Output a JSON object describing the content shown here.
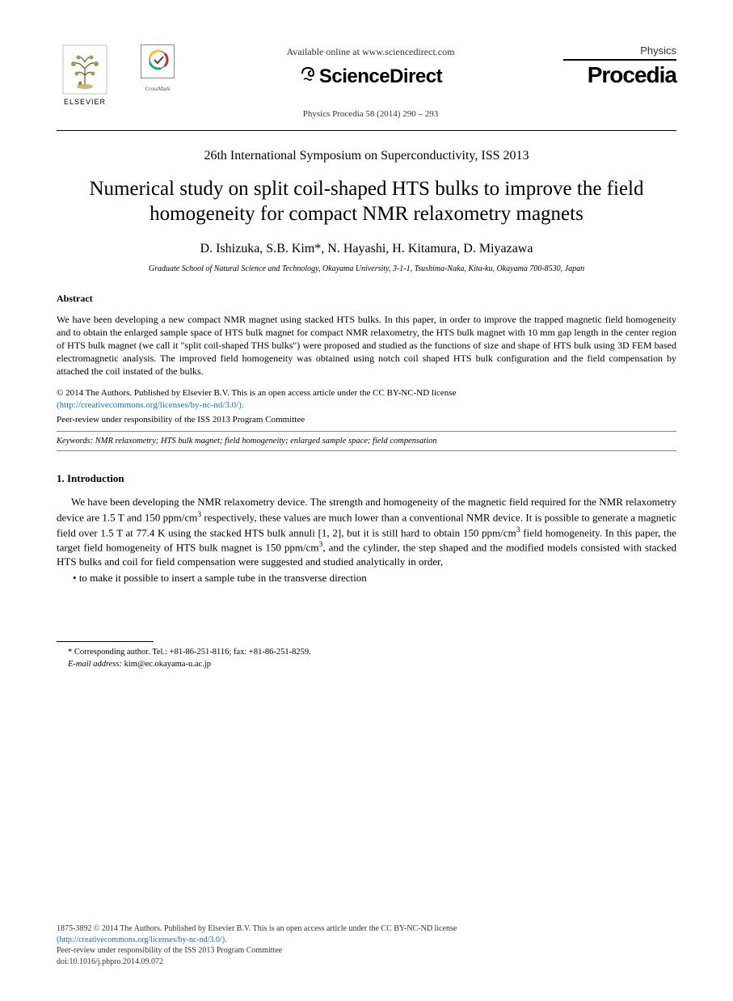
{
  "header": {
    "elsevier_label": "ELSEVIER",
    "crossmark_label": "CrossMark",
    "available_online": "Available online at www.sciencedirect.com",
    "sciencedirect": "ScienceDirect",
    "citation": "Physics Procedia 58 (2014) 290 – 293",
    "procedia_physics": "Physics",
    "procedia_word": "Procedia"
  },
  "symposium": "26th International Symposium on Superconductivity, ISS 2013",
  "title": "Numerical study on split coil-shaped HTS bulks to improve the field homogeneity for compact NMR relaxometry magnets",
  "authors": "D. Ishizuka, S.B. Kim*, N. Hayashi, H. Kitamura, D. Miyazawa",
  "affiliation": "Graduate School of Natural Science and Technology, Okayama University, 3-1-1, Tsushima-Naka, Kita-ku, Okayama 700-8530, Japan",
  "abstract": {
    "heading": "Abstract",
    "body": "We have been developing a new compact NMR magnet using stacked HTS bulks. In this paper, in order to improve the trapped magnetic field homogeneity and to obtain the enlarged sample space of HTS bulk magnet for compact NMR relaxometry, the HTS bulk magnet with 10 mm gap length in the center region of HTS bulk magnet (we call it \"split coil-shaped THS bulks\") were proposed and studied as the functions of size and shape of HTS bulk using 3D FEM based electromagnetic analysis. The improved field homogeneity was obtained using notch coil shaped HTS bulk configuration and the field compensation by attached the coil instated of the bulks."
  },
  "license": {
    "line1": "© 2014 The Authors. Published by Elsevier B.V. This is an open access article under the CC BY-NC-ND license",
    "link_text": "(http://creativecommons.org/licenses/by-nc-nd/3.0/).",
    "link_url": "http://creativecommons.org/licenses/by-nc-nd/3.0/",
    "peer_review": "Peer-review under responsibility of the ISS 2013 Program Committee"
  },
  "keywords": {
    "label": "Keywords:",
    "text": " NMR relaxometry; HTS bulk magnet; field homogeneity; enlarged sample space; field compensation"
  },
  "intro": {
    "heading": "1. Introduction",
    "body_html": "We have been developing the NMR relaxometry device. The strength and homogeneity of the magnetic field required for the NMR relaxometry device are 1.5 T and 150 ppm/cm<sup>3</sup> respectively, these values are much lower than a conventional NMR device.  It is possible to generate a magnetic field over 1.5 T at 77.4 K using the stacked HTS bulk annuli [1, 2], but it is still hard to obtain 150 ppm/cm<sup>3</sup> field homogeneity.  In this paper, the target field homogeneity of HTS bulk magnet is 150 ppm/cm<sup>3</sup>, and the cylinder, the step shaped and the modified models consisted with stacked HTS bulks and coil for field compensation were suggested and studied analytically in order,",
    "bullet": "to make it possible to insert a sample tube in the transverse direction"
  },
  "footnote": {
    "corresponding": "* Corresponding author. Tel.: +81-86-251-8116; fax: +81-86-251-8259.",
    "email_label": "E-mail address:",
    "email": " kim@ec.okayama-u.ac.jp"
  },
  "footer": {
    "issn_line": "1875-3892 © 2014 The Authors. Published by Elsevier B.V. This is an open access article under the CC BY-NC-ND license",
    "link_text": "(http://creativecommons.org/licenses/by-nc-nd/3.0/).",
    "peer_review": "Peer-review under responsibility of the ISS 2013 Program Committee",
    "doi": "doi:10.1016/j.phpro.2014.09.072"
  },
  "colors": {
    "text": "#000000",
    "link": "#1a6fb3",
    "rule": "#000000",
    "background": "#ffffff"
  },
  "fonts": {
    "body_family": "Times New Roman",
    "title_size_pt": 19,
    "body_size_pt": 10,
    "abstract_size_pt": 9,
    "footnote_size_pt": 8
  }
}
